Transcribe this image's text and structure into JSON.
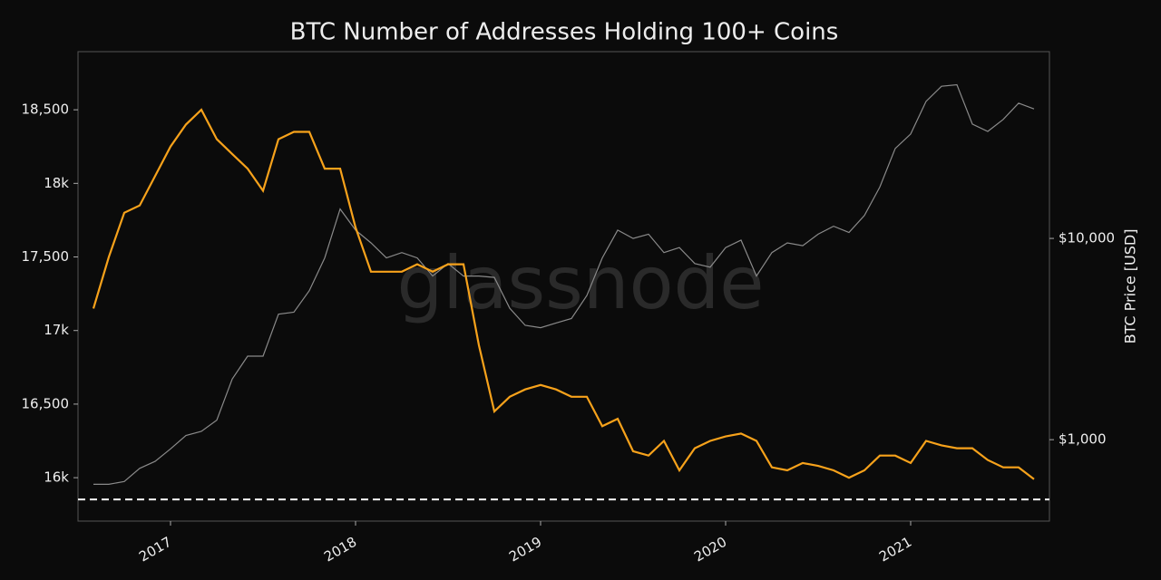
{
  "chart_data": {
    "type": "line",
    "title": "BTC Number of Addresses Holding 100+ Coins",
    "watermark": "glassnode",
    "y2label": "BTC Price [USD]",
    "x": [
      "2016-08",
      "2016-09",
      "2016-10",
      "2016-11",
      "2016-12",
      "2017-01",
      "2017-02",
      "2017-03",
      "2017-04",
      "2017-05",
      "2017-06",
      "2017-07",
      "2017-08",
      "2017-09",
      "2017-10",
      "2017-11",
      "2017-12",
      "2018-01",
      "2018-02",
      "2018-03",
      "2018-04",
      "2018-05",
      "2018-06",
      "2018-07",
      "2018-08",
      "2018-09",
      "2018-10",
      "2018-11",
      "2018-12",
      "2019-01",
      "2019-02",
      "2019-03",
      "2019-04",
      "2019-05",
      "2019-06",
      "2019-07",
      "2019-08",
      "2019-09",
      "2019-10",
      "2019-11",
      "2019-12",
      "2020-01",
      "2020-02",
      "2020-03",
      "2020-04",
      "2020-05",
      "2020-06",
      "2020-07",
      "2020-08",
      "2020-09",
      "2020-10",
      "2020-11",
      "2020-12",
      "2021-01",
      "2021-02",
      "2021-03",
      "2021-04",
      "2021-05",
      "2021-06",
      "2021-07",
      "2021-08",
      "2021-09"
    ],
    "series": [
      {
        "color": "#f7a21b",
        "axis": "y",
        "values": [
          17150,
          17500,
          17800,
          17850,
          18050,
          18250,
          18400,
          18500,
          18300,
          18200,
          18100,
          17950,
          18300,
          18350,
          18350,
          18100,
          18100,
          17700,
          17400,
          17400,
          17400,
          17450,
          17400,
          17450,
          17450,
          16900,
          16450,
          16550,
          16600,
          16630,
          16600,
          16550,
          16550,
          16350,
          16400,
          16180,
          16150,
          16250,
          16050,
          16200,
          16250,
          16280,
          16300,
          16250,
          16070,
          16050,
          16100,
          16080,
          16050,
          16000,
          16050,
          16150,
          16150,
          16100,
          16250,
          16220,
          16200,
          16200,
          16120,
          16070,
          16070,
          15990
        ]
      },
      {
        "color": "#8a8a8a",
        "axis": "y2",
        "values": [
          600,
          600,
          620,
          720,
          780,
          900,
          1050,
          1100,
          1250,
          2000,
          2600,
          2600,
          4200,
          4300,
          5500,
          8000,
          14000,
          11000,
          9500,
          8000,
          8500,
          8000,
          6500,
          7500,
          6500,
          6500,
          6400,
          4500,
          3700,
          3600,
          3800,
          4000,
          5200,
          8000,
          11000,
          10000,
          10500,
          8500,
          9000,
          7500,
          7200,
          9000,
          9800,
          6500,
          8500,
          9500,
          9200,
          10500,
          11500,
          10700,
          13000,
          18000,
          28000,
          33000,
          48000,
          57000,
          58000,
          37000,
          34000,
          39000,
          47000,
          44000
        ]
      }
    ],
    "hline": 15852,
    "xlim": [
      "2016-07",
      "2021-10"
    ],
    "xticks": [
      "2017",
      "2018",
      "2019",
      "2020",
      "2021"
    ],
    "ylim": [
      15705,
      18895
    ],
    "yticks": [
      {
        "value": 16000,
        "label": "16k"
      },
      {
        "value": 16500,
        "label": "16,500"
      },
      {
        "value": 17000,
        "label": "17k"
      },
      {
        "value": 17500,
        "label": "17,500"
      },
      {
        "value": 18000,
        "label": "18k"
      },
      {
        "value": 18500,
        "label": "18,500"
      }
    ],
    "y2lim": [
      394,
      84700
    ],
    "y2log": true,
    "y2ticks": [
      {
        "value": 1000,
        "label": "$1,000"
      },
      {
        "value": 10000,
        "label": "$10,000"
      }
    ]
  }
}
